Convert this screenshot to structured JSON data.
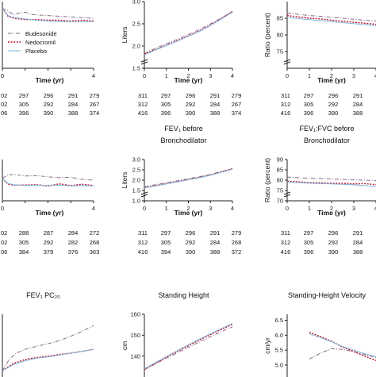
{
  "legend": [
    {
      "name": "Budesonide",
      "color": "#8a6a8a",
      "dash": "5,2,1,2"
    },
    {
      "name": "Nedocromil",
      "color": "#c0102a",
      "dash": "2,1.6"
    },
    {
      "name": "Placebo",
      "color": "#7fb6dc",
      "dash": ""
    }
  ],
  "x_title": "Time (yr)",
  "chart_data": [
    {
      "id": "r1c1",
      "type": "line",
      "title": "",
      "ylabel": "",
      "x_ticks": [
        "0",
        "",
        "",
        "",
        "4"
      ],
      "y_ticks": [],
      "xlim": [
        0,
        4
      ],
      "ylim": [
        0,
        10
      ],
      "series": [
        {
          "name": "Budesonide",
          "x": [
            0,
            0.25,
            0.5,
            0.75,
            1,
            1.25,
            1.5,
            2,
            2.5,
            3,
            3.5,
            4
          ],
          "y": [
            9.0,
            8.6,
            8.0,
            8.3,
            8.4,
            8.1,
            8.0,
            7.9,
            7.8,
            7.7,
            7.6,
            7.5
          ]
        },
        {
          "name": "Nedocromil",
          "x": [
            0,
            0.25,
            0.5,
            1,
            1.5,
            2,
            2.5,
            3,
            3.5,
            4
          ],
          "y": [
            9.0,
            7.8,
            7.5,
            7.3,
            7.3,
            7.2,
            7.2,
            7.1,
            7.2,
            7.1
          ]
        },
        {
          "name": "Placebo",
          "x": [
            0,
            0.25,
            0.5,
            1,
            1.5,
            2,
            2.5,
            3,
            3.5,
            4
          ],
          "y": [
            9.0,
            7.9,
            7.6,
            7.4,
            7.2,
            7.1,
            7.0,
            7.0,
            7.0,
            7.0
          ]
        }
      ],
      "counts": [
        [
          "02",
          "297",
          "296",
          "291",
          "279"
        ],
        [
          "02",
          "305",
          "292",
          "284",
          "267"
        ],
        [
          "06",
          "396",
          "390",
          "388",
          "374"
        ]
      ]
    },
    {
      "id": "r1c2",
      "type": "line",
      "title": "",
      "ylabel": "Liters",
      "x_ticks": [
        "0",
        "1",
        "2",
        "3",
        "4"
      ],
      "y_ticks": [
        "1.5",
        "2.0",
        "2.5",
        "3.0"
      ],
      "xlim": [
        0,
        4
      ],
      "ylim": [
        1.5,
        3.0
      ],
      "series": [
        {
          "name": "Budesonide",
          "x": [
            0,
            0.5,
            1,
            1.5,
            2,
            2.5,
            3,
            3.5,
            4
          ],
          "y": [
            1.83,
            1.95,
            2.05,
            2.15,
            2.26,
            2.37,
            2.5,
            2.63,
            2.78
          ]
        },
        {
          "name": "Nedocromil",
          "x": [
            0,
            0.5,
            1,
            1.5,
            2,
            2.5,
            3,
            3.5,
            4
          ],
          "y": [
            1.82,
            1.92,
            2.02,
            2.12,
            2.23,
            2.34,
            2.47,
            2.62,
            2.77
          ]
        },
        {
          "name": "Placebo",
          "x": [
            0,
            0.5,
            1,
            1.5,
            2,
            2.5,
            3,
            3.5,
            4
          ],
          "y": [
            1.8,
            1.91,
            2.01,
            2.11,
            2.22,
            2.33,
            2.46,
            2.61,
            2.76
          ]
        }
      ],
      "counts": [
        [
          "311",
          "297",
          "296",
          "291",
          "279"
        ],
        [
          "312",
          "305",
          "292",
          "284",
          "267"
        ],
        [
          "416",
          "396",
          "390",
          "388",
          "374"
        ]
      ]
    },
    {
      "id": "r1c3",
      "type": "line",
      "title": "",
      "ylabel": "Ratio (percent)",
      "x_ticks": [
        "0",
        "1",
        "2",
        "3",
        "4"
      ],
      "y_ticks": [
        "75",
        "80",
        "85"
      ],
      "xlim": [
        0,
        4
      ],
      "ylim": [
        70,
        90
      ],
      "series": [
        {
          "name": "Budesonide",
          "x": [
            0,
            0.5,
            1,
            1.5,
            2,
            2.5,
            3,
            3.5,
            4
          ],
          "y": [
            86.6,
            86.2,
            85.8,
            85.6,
            85.3,
            85.0,
            84.7,
            84.4,
            84.2
          ]
        },
        {
          "name": "Nedocromil",
          "x": [
            0,
            0.5,
            1,
            1.5,
            2,
            2.5,
            3,
            3.5,
            4
          ],
          "y": [
            85.8,
            85.4,
            85.0,
            84.8,
            84.4,
            84.1,
            83.8,
            83.5,
            83.2
          ]
        },
        {
          "name": "Placebo",
          "x": [
            0,
            0.5,
            1,
            1.5,
            2,
            2.5,
            3,
            3.5,
            4
          ],
          "y": [
            85.2,
            84.9,
            84.6,
            84.3,
            84.0,
            83.7,
            83.4,
            83.1,
            82.8
          ]
        }
      ],
      "counts": [
        [
          "311",
          "297",
          "296",
          "291",
          "2"
        ],
        [
          "312",
          "305",
          "292",
          "284",
          "2"
        ],
        [
          "416",
          "396",
          "390",
          "388",
          "3"
        ]
      ]
    },
    {
      "id": "r2c1",
      "type": "line",
      "title": "FEV₁ before Bronchodilator",
      "title_lines": [
        "",
        ""
      ],
      "ylabel": "",
      "x_ticks": [
        "0",
        "",
        "",
        "",
        "4"
      ],
      "y_ticks": [],
      "xlim": [
        0,
        4
      ],
      "ylim": [
        0,
        10
      ],
      "series": [
        {
          "name": "Budesonide",
          "x": [
            0,
            0.25,
            0.5,
            1,
            1.5,
            2,
            2.5,
            3,
            3.5,
            4
          ],
          "y": [
            5.5,
            6.3,
            6.4,
            6.0,
            6.1,
            5.8,
            5.6,
            5.7,
            5.2,
            5.0
          ]
        },
        {
          "name": "Nedocromil",
          "x": [
            0,
            0.25,
            0.5,
            1,
            1.5,
            2,
            2.5,
            3,
            3.5,
            4
          ],
          "y": [
            5.5,
            4.0,
            3.8,
            3.8,
            3.9,
            3.6,
            4.1,
            3.7,
            4.0,
            3.7
          ]
        },
        {
          "name": "Placebo",
          "x": [
            0,
            0.25,
            0.5,
            1,
            1.5,
            2,
            2.5,
            3,
            3.5,
            4
          ],
          "y": [
            5.5,
            4.2,
            3.9,
            3.7,
            3.8,
            3.7,
            3.8,
            3.6,
            3.7,
            3.6
          ]
        }
      ],
      "counts": [
        [
          "02",
          "288",
          "287",
          "284",
          "272"
        ],
        [
          "02",
          "305",
          "292",
          "282",
          "268"
        ],
        [
          "06",
          "384",
          "379",
          "376",
          "363"
        ]
      ]
    },
    {
      "id": "r2c2",
      "type": "line",
      "title": "",
      "title_lines": [
        "FEV₁ before",
        "Bronchodilator"
      ],
      "ylabel": "Liters",
      "x_ticks": [
        "0",
        "1",
        "2",
        "3",
        "4"
      ],
      "y_ticks": [
        "1.0",
        "1.5",
        "2.0",
        "2.5",
        "3.0"
      ],
      "xlim": [
        0,
        4
      ],
      "ylim": [
        1.0,
        3.0
      ],
      "series": [
        {
          "name": "Budesonide",
          "x": [
            0,
            0.5,
            1,
            1.5,
            2,
            2.5,
            3,
            3.5,
            4
          ],
          "y": [
            1.68,
            1.78,
            1.88,
            1.97,
            2.07,
            2.17,
            2.28,
            2.42,
            2.55
          ]
        },
        {
          "name": "Nedocromil",
          "x": [
            0,
            0.5,
            1,
            1.5,
            2,
            2.5,
            3,
            3.5,
            4
          ],
          "y": [
            1.63,
            1.73,
            1.83,
            1.93,
            2.03,
            2.13,
            2.25,
            2.4,
            2.55
          ]
        },
        {
          "name": "Placebo",
          "x": [
            0,
            0.5,
            1,
            1.5,
            2,
            2.5,
            3,
            3.5,
            4
          ],
          "y": [
            1.62,
            1.72,
            1.82,
            1.92,
            2.02,
            2.12,
            2.24,
            2.38,
            2.53
          ]
        }
      ],
      "counts": [
        [
          "311",
          "297",
          "296",
          "291",
          "279"
        ],
        [
          "312",
          "305",
          "292",
          "284",
          "268"
        ],
        [
          "416",
          "394",
          "390",
          "388",
          "372"
        ]
      ]
    },
    {
      "id": "r2c3",
      "type": "line",
      "title": "",
      "title_lines": [
        "FEV₁:FVC before",
        "Bronchodilator"
      ],
      "ylabel": "Ratio (percent)",
      "x_ticks": [
        "0",
        "1",
        "2",
        "3",
        "4"
      ],
      "y_ticks": [
        "70",
        "75",
        "80",
        "85",
        "90"
      ],
      "xlim": [
        0,
        4
      ],
      "ylim": [
        70,
        90
      ],
      "series": [
        {
          "name": "Budesonide",
          "x": [
            0,
            0.5,
            1,
            1.5,
            2,
            2.5,
            3,
            3.5,
            4
          ],
          "y": [
            81.5,
            81.2,
            80.9,
            80.8,
            80.6,
            80.4,
            80.2,
            80.0,
            79.8
          ]
        },
        {
          "name": "Nedocromil",
          "x": [
            0,
            0.5,
            1,
            1.5,
            2,
            2.5,
            3,
            3.5,
            4
          ],
          "y": [
            79.5,
            79.2,
            78.8,
            78.7,
            78.5,
            78.5,
            78.2,
            78.3,
            77.8
          ]
        },
        {
          "name": "Placebo",
          "x": [
            0,
            0.5,
            1,
            1.5,
            2,
            2.5,
            3,
            3.5,
            4
          ],
          "y": [
            79.2,
            78.8,
            78.5,
            78.3,
            78.2,
            78.0,
            77.7,
            77.4,
            77.0
          ]
        }
      ],
      "counts": [
        [
          "311",
          "297",
          "296",
          "291",
          "2"
        ],
        [
          "312",
          "305",
          "292",
          "284",
          "2"
        ],
        [
          "416",
          "396",
          "390",
          "388",
          "3"
        ]
      ]
    },
    {
      "id": "r3c1",
      "type": "line",
      "title": "",
      "title_lines": [
        "FEV₁ PC₂₀"
      ],
      "ylabel": "",
      "x_ticks": [],
      "y_ticks": [],
      "xlim": [
        0,
        4
      ],
      "ylim": [
        0,
        10
      ],
      "series": [
        {
          "name": "Budesonide",
          "x": [
            0,
            0.3,
            0.6,
            1,
            1.5,
            2,
            2.5,
            3,
            3.5,
            4
          ],
          "y": [
            1.0,
            2.8,
            3.8,
            4.4,
            4.9,
            5.3,
            5.8,
            6.5,
            7.3,
            8.2
          ]
        },
        {
          "name": "Nedocromil",
          "x": [
            0,
            0.5,
            1,
            1.5,
            2,
            2.5,
            3,
            3.5,
            4
          ],
          "y": [
            1.0,
            2.2,
            2.8,
            3.1,
            3.3,
            3.6,
            3.8,
            4.1,
            4.4
          ]
        },
        {
          "name": "Placebo",
          "x": [
            0,
            0.5,
            1,
            1.5,
            2,
            2.5,
            3,
            3.5,
            4
          ],
          "y": [
            1.0,
            2.0,
            2.6,
            3.0,
            3.2,
            3.5,
            3.8,
            4.1,
            4.4
          ]
        }
      ],
      "counts": []
    },
    {
      "id": "r3c2",
      "type": "line",
      "title": "",
      "title_lines": [
        "Standing Height"
      ],
      "ylabel": "cm",
      "x_ticks": [],
      "y_ticks": [
        "140",
        "150",
        "160"
      ],
      "xlim": [
        0,
        4
      ],
      "ylim": [
        130,
        160
      ],
      "series": [
        {
          "name": "Budesonide",
          "x": [
            0,
            0.5,
            1,
            1.5,
            2,
            2.5,
            3,
            3.5,
            4
          ],
          "y": [
            133.5,
            136.3,
            139.0,
            141.6,
            144.2,
            146.8,
            149.3,
            151.7,
            154.0
          ]
        },
        {
          "name": "Nedocromil",
          "x": [
            0,
            0.5,
            1,
            1.5,
            2,
            2.5,
            3,
            3.5,
            4
          ],
          "y": [
            133.7,
            136.6,
            139.5,
            142.3,
            145.0,
            147.7,
            150.3,
            152.8,
            155.2
          ]
        },
        {
          "name": "Placebo",
          "x": [
            0,
            0.5,
            1,
            1.5,
            2,
            2.5,
            3,
            3.5,
            4
          ],
          "y": [
            133.9,
            136.9,
            139.8,
            142.6,
            145.4,
            148.1,
            150.7,
            153.2,
            155.6
          ]
        }
      ],
      "counts": []
    },
    {
      "id": "r3c3",
      "type": "line",
      "title": "",
      "title_lines": [
        "Standing-Height Velocity"
      ],
      "ylabel": "cm/yr",
      "x_ticks": [],
      "y_ticks": [
        "5.0",
        "5.5",
        "6.0",
        "6.5"
      ],
      "xlim": [
        0,
        4
      ],
      "ylim": [
        4.6,
        6.7
      ],
      "series": [
        {
          "name": "Budesonide",
          "x": [
            1,
            1.5,
            2,
            2.5,
            3,
            3.5,
            4
          ],
          "y": [
            5.2,
            5.4,
            5.55,
            5.52,
            5.45,
            5.35,
            5.25
          ]
        },
        {
          "name": "Nedocromil",
          "x": [
            1,
            1.5,
            2,
            2.5,
            3,
            3.5,
            4
          ],
          "y": [
            6.1,
            5.95,
            5.8,
            5.6,
            5.45,
            5.3,
            5.15
          ]
        },
        {
          "name": "Placebo",
          "x": [
            1,
            1.5,
            2,
            2.5,
            3,
            3.5,
            4
          ],
          "y": [
            6.05,
            5.92,
            5.78,
            5.62,
            5.5,
            5.38,
            5.28
          ]
        }
      ],
      "counts": []
    }
  ]
}
